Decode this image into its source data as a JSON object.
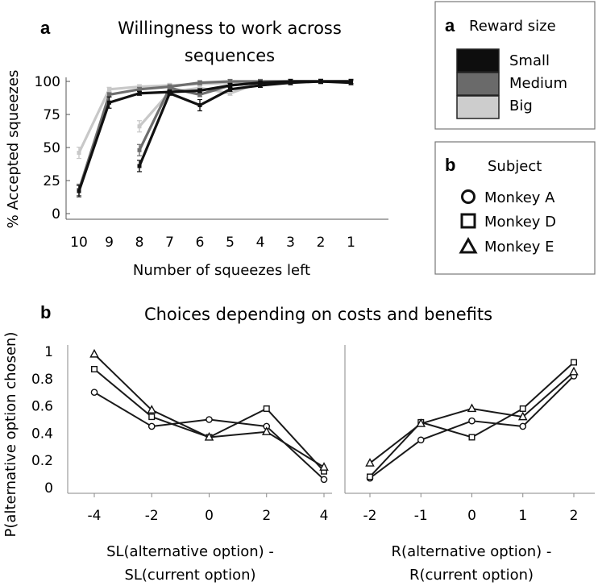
{
  "chart_data": [
    {
      "type": "line",
      "panel": "a",
      "title_line1": "Willingness to work across",
      "title_line2": "sequences",
      "xlabel": "Number of squeezes left",
      "ylabel": "% Accepted squeezes",
      "x_ticks": [
        "10",
        "9",
        "8",
        "7",
        "6",
        "5",
        "4",
        "3",
        "2",
        "1"
      ],
      "y_ticks": [
        "0",
        "25",
        "50",
        "75",
        "100"
      ],
      "ylim": [
        0,
        100
      ],
      "series": [
        {
          "name": "Big",
          "color": "#c8c8c8",
          "segments": [
            {
              "x": [
                10,
                9,
                8,
                7,
                6,
                5,
                4,
                3,
                2,
                1
              ],
              "y": [
                46,
                94,
                96,
                97,
                98,
                99,
                100,
                100,
                100,
                100
              ]
            },
            {
              "x": [
                8,
                7,
                6,
                5,
                4,
                3,
                2,
                1
              ],
              "y": [
                66,
                92,
                95,
                91,
                99,
                100,
                100,
                100
              ]
            }
          ]
        },
        {
          "name": "Medium",
          "color": "#6e6e6e",
          "segments": [
            {
              "x": [
                10,
                9,
                8,
                7,
                6,
                5,
                4,
                3,
                2,
                1
              ],
              "y": [
                18,
                90,
                94,
                96,
                99,
                100,
                100,
                100,
                100,
                100
              ]
            },
            {
              "x": [
                8,
                7,
                6,
                5,
                4,
                3,
                2,
                1
              ],
              "y": [
                48,
                95,
                90,
                97,
                99,
                100,
                100,
                100
              ]
            }
          ]
        },
        {
          "name": "Small",
          "color": "#111111",
          "segments": [
            {
              "x": [
                10,
                9,
                8,
                7,
                6,
                5,
                4,
                3,
                2,
                1
              ],
              "y": [
                17,
                84,
                91,
                92,
                93,
                97,
                99,
                100,
                100,
                100
              ]
            },
            {
              "x": [
                8,
                7,
                6,
                5,
                4,
                3,
                2,
                1
              ],
              "y": [
                36,
                91,
                82,
                94,
                97,
                99,
                100,
                99
              ]
            }
          ]
        }
      ]
    },
    {
      "type": "line",
      "panel": "b",
      "title": "Choices depending on costs and benefits",
      "ylabel": "P(alternative option chosen)",
      "y_ticks": [
        "0",
        "0.2",
        "0.4",
        "0.6",
        "0.8",
        "1"
      ],
      "ylim": [
        0,
        1
      ],
      "subplots": [
        {
          "xlabel_line1": "SL(alternative option) -",
          "xlabel_line2": "SL(current option)",
          "x": [
            -4,
            -2,
            0,
            2,
            4
          ],
          "x_ticks": [
            "-4",
            "-2",
            "0",
            "2",
            "4"
          ],
          "series": [
            {
              "name": "Monkey A",
              "marker": "circle",
              "values": [
                0.7,
                0.45,
                0.5,
                0.45,
                0.06
              ]
            },
            {
              "name": "Monkey D",
              "marker": "square",
              "values": [
                0.87,
                0.52,
                0.37,
                0.58,
                0.12
              ]
            },
            {
              "name": "Monkey E",
              "marker": "triangle",
              "values": [
                0.98,
                0.57,
                0.37,
                0.41,
                0.15
              ]
            }
          ]
        },
        {
          "xlabel_line1": "R(alternative option) -",
          "xlabel_line2": "R(current option)",
          "x": [
            -2,
            -1,
            0,
            1,
            2
          ],
          "x_ticks": [
            "-2",
            "-1",
            "0",
            "1",
            "2"
          ],
          "series": [
            {
              "name": "Monkey A",
              "marker": "circle",
              "values": [
                0.07,
                0.35,
                0.49,
                0.45,
                0.82
              ]
            },
            {
              "name": "Monkey D",
              "marker": "square",
              "values": [
                0.08,
                0.48,
                0.37,
                0.58,
                0.92
              ]
            },
            {
              "name": "Monkey E",
              "marker": "triangle",
              "values": [
                0.18,
                0.47,
                0.58,
                0.52,
                0.85
              ]
            }
          ]
        }
      ]
    }
  ],
  "legend_reward": {
    "letter": "a",
    "title": "Reward size",
    "items": [
      {
        "label": "Small",
        "color": "#0e0e0e"
      },
      {
        "label": "Medium",
        "color": "#6a6a6a"
      },
      {
        "label": "Big",
        "color": "#cdcdcd"
      }
    ]
  },
  "legend_subject": {
    "letter": "b",
    "title": "Subject",
    "items": [
      {
        "label": "Monkey A",
        "marker": "circle"
      },
      {
        "label": "Monkey D",
        "marker": "square"
      },
      {
        "label": "Monkey E",
        "marker": "triangle"
      }
    ]
  }
}
